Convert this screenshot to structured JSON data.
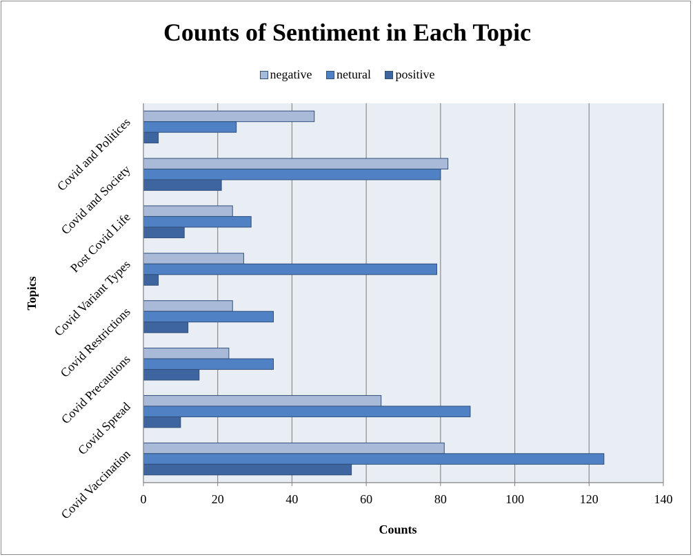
{
  "chart_data": {
    "type": "bar",
    "orientation": "horizontal",
    "title": "Counts of Sentiment in Each Topic",
    "xlabel": "Counts",
    "ylabel": "Topics",
    "xlim": [
      0,
      140
    ],
    "x_ticks": [
      0,
      20,
      40,
      60,
      80,
      100,
      120,
      140
    ],
    "grid": true,
    "legend_position": "top",
    "categories": [
      "Covid and Politices",
      "Covid and Society",
      "Post Covid Life",
      "Covid Variant Types",
      "Covid Restrictions",
      "Covid Precautions",
      "Covid Spread",
      "Covid Vaccination"
    ],
    "series": [
      {
        "name": "negative",
        "color": "#a9b9d8",
        "values": [
          46,
          82,
          24,
          27,
          24,
          23,
          64,
          81
        ]
      },
      {
        "name": "netural",
        "color": "#4f81c4",
        "values": [
          25,
          80,
          29,
          79,
          35,
          35,
          88,
          124
        ]
      },
      {
        "name": "positive",
        "color": "#3f65a0",
        "values": [
          4,
          21,
          11,
          4,
          12,
          15,
          10,
          56
        ]
      }
    ]
  }
}
